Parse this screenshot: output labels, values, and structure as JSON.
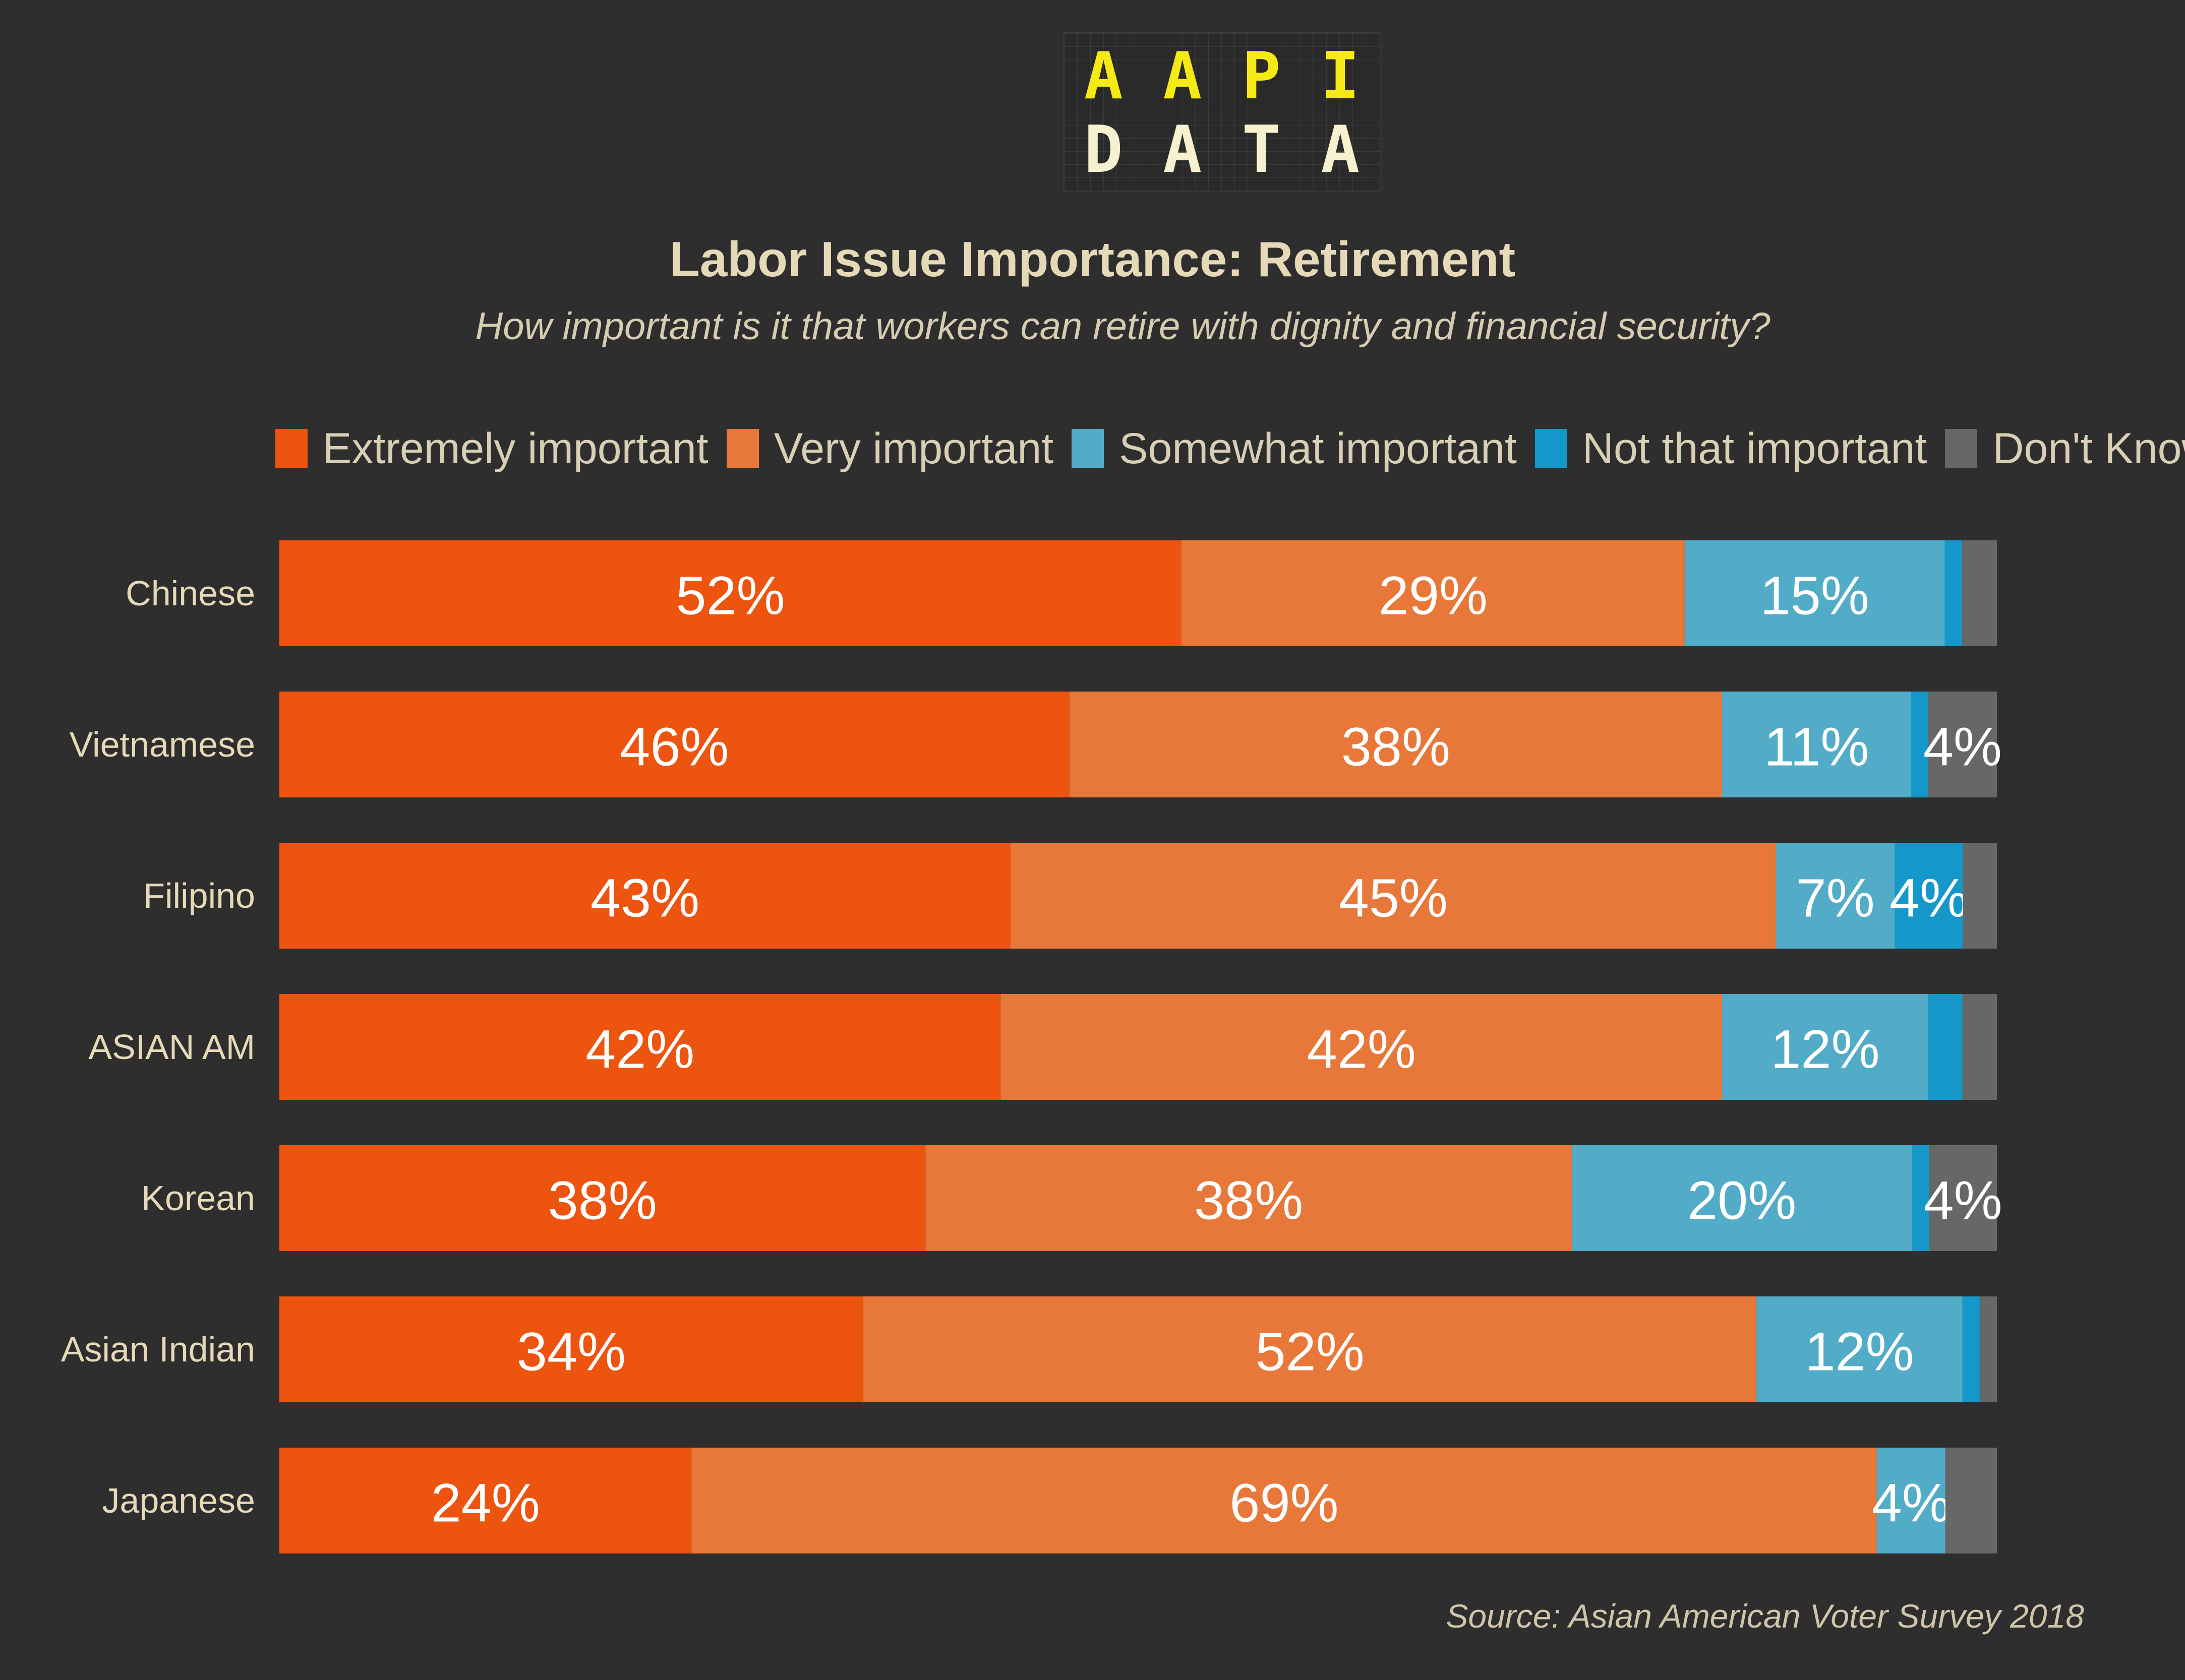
{
  "logo": {
    "top_letters": [
      "A",
      "A",
      "P",
      "I"
    ],
    "bottom_letters": [
      "D",
      "A",
      "T",
      "A"
    ],
    "top_color": "#f5e916",
    "bottom_color": "#f7f1cf"
  },
  "source": "Source: Asian American Voter Survey 2018",
  "colors": {
    "label_text": "#ffffff",
    "category_text": "#e6d9b8"
  },
  "chart_data": {
    "type": "bar",
    "orientation": "horizontal",
    "stacked": true,
    "title": "Labor Issue Importance: Retirement",
    "subtitle": "How important is it that workers can retire with dignity and financial security?",
    "xlim": [
      0,
      100
    ],
    "grid": false,
    "legend_position": "top",
    "categories": [
      "Chinese",
      "Vietnamese",
      "Filipino",
      "ASIAN AM",
      "Korean",
      "Asian Indian",
      "Japanese"
    ],
    "series": [
      {
        "name": "Extremely important",
        "color": "#ec540f",
        "values": [
          52,
          46,
          43,
          42,
          38,
          34,
          24
        ],
        "labels": [
          "52%",
          "46%",
          "43%",
          "42%",
          "38%",
          "34%",
          "24%"
        ]
      },
      {
        "name": "Very important",
        "color": "#e8783a",
        "values": [
          29,
          38,
          45,
          42,
          38,
          52,
          69
        ],
        "labels": [
          "29%",
          "38%",
          "45%",
          "42%",
          "38%",
          "52%",
          "69%"
        ]
      },
      {
        "name": "Somewhat important",
        "color": "#52acc7",
        "values": [
          15,
          11,
          7,
          12,
          20,
          12,
          4
        ],
        "labels": [
          "15%",
          "11%",
          "7%",
          "12%",
          "20%",
          "12%",
          "4%"
        ]
      },
      {
        "name": "Not that important",
        "color": "#1598c9",
        "values": [
          1,
          1,
          4,
          2,
          1,
          1,
          0
        ],
        "labels": [
          "",
          "",
          "4%",
          "",
          "",
          "",
          ""
        ]
      },
      {
        "name": "Don't Know",
        "color": "#676767",
        "values": [
          2,
          4,
          2,
          2,
          4,
          1,
          3
        ],
        "labels": [
          "",
          "4%",
          "",
          "",
          "4%",
          "",
          ""
        ]
      }
    ]
  }
}
